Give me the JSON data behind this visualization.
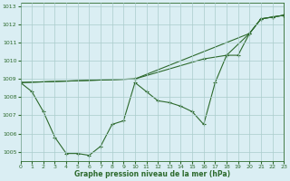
{
  "title": "Graphe pression niveau de la mer (hPa)",
  "bg_color": "#daeef3",
  "grid_color": "#aacccc",
  "line_color": "#2d6a2d",
  "x_min": 0,
  "x_max": 23,
  "y_min": 1004.5,
  "y_max": 1013.2,
  "x_ticks": [
    0,
    1,
    2,
    3,
    4,
    5,
    6,
    7,
    8,
    9,
    10,
    11,
    12,
    13,
    14,
    15,
    16,
    17,
    18,
    19,
    20,
    21,
    22,
    23
  ],
  "y_ticks": [
    1005,
    1006,
    1007,
    1008,
    1009,
    1010,
    1011,
    1012,
    1013
  ],
  "s1_x": [
    0,
    1,
    2,
    3,
    4,
    5,
    6,
    7,
    8,
    9,
    10,
    11,
    12,
    13,
    14,
    15,
    16,
    17,
    18,
    19,
    20,
    21,
    22,
    23
  ],
  "s1_y": [
    1008.8,
    1008.3,
    1007.2,
    1005.8,
    1004.9,
    1004.9,
    1004.8,
    1005.3,
    1006.5,
    1006.7,
    1008.8,
    1008.3,
    1007.8,
    1007.7,
    1007.5,
    1007.2,
    1006.5,
    1008.8,
    1010.3,
    1010.3,
    1011.5,
    1012.3,
    1012.4,
    1012.5
  ],
  "s2_x": [
    0,
    10,
    20,
    21,
    22,
    23
  ],
  "s2_y": [
    1008.8,
    1009.0,
    1011.5,
    1012.3,
    1012.4,
    1012.5
  ],
  "s3_x": [
    0,
    10,
    16,
    18,
    20,
    21,
    22,
    23
  ],
  "s3_y": [
    1008.8,
    1009.0,
    1010.1,
    1010.3,
    1011.5,
    1012.3,
    1012.4,
    1012.5
  ]
}
